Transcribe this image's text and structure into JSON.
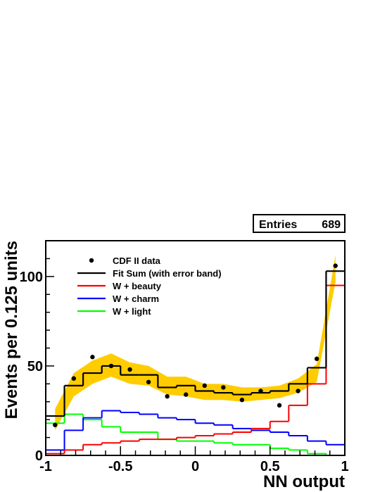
{
  "chart_data": {
    "type": "histogram",
    "xlabel": "NN output",
    "ylabel": "Events per 0.125 units",
    "xlim": [
      -1,
      1
    ],
    "ylim": [
      0,
      120
    ],
    "xticks": [
      -1,
      -0.5,
      0,
      0.5,
      1
    ],
    "xtick_labels": [
      "-1",
      "-0.5",
      "0",
      "0.5",
      "1"
    ],
    "yticks": [
      0,
      50,
      100
    ],
    "ytick_labels": [
      "0",
      "50",
      "100"
    ],
    "bin_edges": [
      -1,
      -0.875,
      -0.75,
      -0.625,
      -0.5,
      -0.375,
      -0.25,
      -0.125,
      0,
      0.125,
      0.25,
      0.375,
      0.5,
      0.625,
      0.75,
      0.875,
      1
    ],
    "stats": {
      "label": "Entries",
      "value": "689"
    },
    "legend_position": "top-left",
    "data_points": {
      "name": "CDF II data",
      "x": [
        -0.9375,
        -0.8125,
        -0.6875,
        -0.5625,
        -0.4375,
        -0.3125,
        -0.1875,
        -0.0625,
        0.0625,
        0.1875,
        0.3125,
        0.4375,
        0.5625,
        0.6875,
        0.8125,
        0.9375
      ],
      "y": [
        17,
        43,
        55,
        50,
        48,
        41,
        33,
        34,
        39,
        38,
        31,
        36,
        28,
        36,
        54,
        106
      ]
    },
    "series": [
      {
        "name": "Fit Sum (with error band)",
        "color": "#000000",
        "values": [
          22,
          39,
          46,
          50,
          45,
          45,
          38,
          39,
          36,
          35,
          34,
          35,
          36,
          40,
          49,
          103
        ],
        "band_lower": [
          14,
          33,
          40,
          44,
          40,
          39,
          34,
          33,
          31,
          31,
          30,
          31,
          32,
          35,
          41,
          97
        ],
        "band_upper": [
          26,
          46,
          53,
          57,
          52,
          50,
          44,
          44,
          40,
          40,
          38,
          38,
          39,
          43,
          51,
          112
        ]
      },
      {
        "name": "W + beauty",
        "color": "#ff0000",
        "values": [
          1,
          3,
          6,
          7,
          8,
          9,
          9,
          10,
          11,
          12,
          13,
          15,
          19,
          28,
          40,
          95
        ]
      },
      {
        "name": "W + charm",
        "color": "#0000ff",
        "values": [
          3,
          14,
          21,
          25,
          24,
          23,
          21,
          20,
          18,
          17,
          15,
          14,
          13,
          11,
          8,
          6
        ]
      },
      {
        "name": "W + light",
        "color": "#00ff00",
        "values": [
          18,
          23,
          20,
          16,
          13,
          13,
          9,
          8,
          8,
          7,
          6,
          6,
          4,
          3,
          1,
          0
        ]
      }
    ],
    "band_color": "#ffcc00"
  }
}
